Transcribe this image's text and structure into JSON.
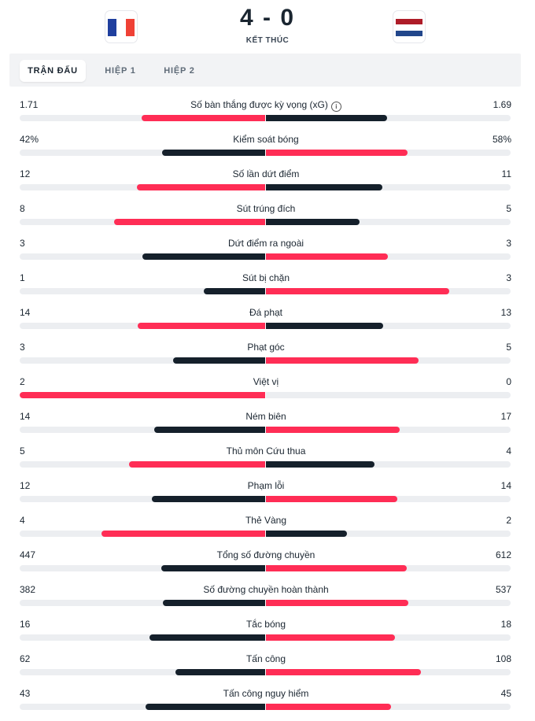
{
  "match": {
    "score": "4 - 0",
    "status": "KẾT THÚC",
    "home_colors": [
      "#1f3f9e",
      "#ffffff",
      "#ef4135"
    ],
    "away_colors": [
      "#ae1c28",
      "#ffffff",
      "#21468b"
    ]
  },
  "tabs": [
    {
      "label": "TRẬN ĐẤU",
      "active": true
    },
    {
      "label": "HIỆP 1",
      "active": false
    },
    {
      "label": "HIỆP 2",
      "active": false
    }
  ],
  "stats": [
    {
      "label": "Số bàn thắng được kỳ vọng (xG)",
      "home": "1.71",
      "away": "1.69",
      "home_value": 1.71,
      "away_value": 1.69,
      "info": true
    },
    {
      "label": "Kiểm soát bóng",
      "home": "42%",
      "away": "58%",
      "home_value": 42,
      "away_value": 58
    },
    {
      "label": "Số lần dứt điểm",
      "home": "12",
      "away": "11",
      "home_value": 12,
      "away_value": 11
    },
    {
      "label": "Sút trúng đích",
      "home": "8",
      "away": "5",
      "home_value": 8,
      "away_value": 5
    },
    {
      "label": "Dứt điểm ra ngoài",
      "home": "3",
      "away": "3",
      "home_value": 3,
      "away_value": 3
    },
    {
      "label": "Sút bị chặn",
      "home": "1",
      "away": "3",
      "home_value": 1,
      "away_value": 3
    },
    {
      "label": "Đá phạt",
      "home": "14",
      "away": "13",
      "home_value": 14,
      "away_value": 13
    },
    {
      "label": "Phạt góc",
      "home": "3",
      "away": "5",
      "home_value": 3,
      "away_value": 5
    },
    {
      "label": "Việt vị",
      "home": "2",
      "away": "0",
      "home_value": 2,
      "away_value": 0
    },
    {
      "label": "Ném biên",
      "home": "14",
      "away": "17",
      "home_value": 14,
      "away_value": 17
    },
    {
      "label": "Thủ môn Cứu thua",
      "home": "5",
      "away": "4",
      "home_value": 5,
      "away_value": 4
    },
    {
      "label": "Phạm lỗi",
      "home": "12",
      "away": "14",
      "home_value": 12,
      "away_value": 14
    },
    {
      "label": "Thẻ Vàng",
      "home": "4",
      "away": "2",
      "home_value": 4,
      "away_value": 2
    },
    {
      "label": "Tổng số đường chuyền",
      "home": "447",
      "away": "612",
      "home_value": 447,
      "away_value": 612
    },
    {
      "label": "Số đường chuyền hoàn thành",
      "home": "382",
      "away": "537",
      "home_value": 382,
      "away_value": 537
    },
    {
      "label": "Tắc bóng",
      "home": "16",
      "away": "18",
      "home_value": 16,
      "away_value": 18
    },
    {
      "label": "Tấn công",
      "home": "62",
      "away": "108",
      "home_value": 62,
      "away_value": 108
    },
    {
      "label": "Tấn công nguy hiểm",
      "home": "43",
      "away": "45",
      "home_value": 43,
      "away_value": 45
    }
  ],
  "colors": {
    "leader": "#ff2d55",
    "trailer": "#15202b",
    "track": "#eceef1"
  }
}
